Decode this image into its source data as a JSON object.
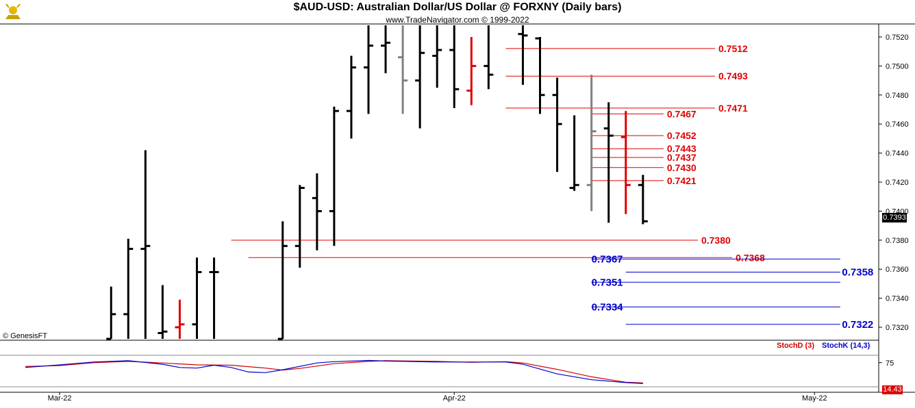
{
  "header": {
    "title": "$AUD-USD:  Australian Dollar/US Dollar @ FORXNY  (Daily bars)",
    "subtitle": "www.TradeNavigator.com © 1999-2022",
    "credit": "© GenesisFT"
  },
  "colors": {
    "bar_default": "#000000",
    "bar_red": "#e00000",
    "bar_gray": "#808080",
    "level_red": "#e00000",
    "level_blue": "#0000cc",
    "stoch_d": "#d00000",
    "stoch_k": "#0000cc"
  },
  "chart_data": [
    {
      "type": "ohlc",
      "title": "$AUD-USD:  Australian Dollar/US Dollar @ FORXNY  (Daily bars)",
      "y_ticks": [
        "0.7520",
        "0.7500",
        "0.7480",
        "0.7460",
        "0.7440",
        "0.7420",
        "0.7400",
        "0.7380",
        "0.7360",
        "0.7340",
        "0.7320"
      ],
      "ylim": [
        0.7312,
        0.7528
      ],
      "last_price": "0.7393",
      "x_labels": [
        {
          "label": "Mar-22",
          "index": 2
        },
        {
          "label": "Apr-22",
          "index": 25
        },
        {
          "label": "May-22",
          "index": 46
        }
      ],
      "bars": [
        {
          "i": 5,
          "h": 0.7348,
          "l": 0.7312,
          "o": 0.7312,
          "c": 0.7329,
          "color": "black"
        },
        {
          "i": 6,
          "h": 0.7381,
          "l": 0.7312,
          "o": 0.7329,
          "c": 0.7374,
          "color": "black"
        },
        {
          "i": 7,
          "h": 0.7442,
          "l": 0.7312,
          "o": 0.7374,
          "c": 0.7376,
          "color": "black"
        },
        {
          "i": 8,
          "h": 0.7349,
          "l": 0.7312,
          "o": 0.7316,
          "c": 0.7317,
          "color": "black"
        },
        {
          "i": 9,
          "h": 0.7339,
          "l": 0.7312,
          "o": 0.732,
          "c": 0.7322,
          "color": "red"
        },
        {
          "i": 10,
          "h": 0.7368,
          "l": 0.7312,
          "o": 0.7322,
          "c": 0.7358,
          "color": "black"
        },
        {
          "i": 11,
          "h": 0.7368,
          "l": 0.7312,
          "o": 0.7358,
          "c": 0.7358,
          "color": "black"
        },
        {
          "i": 15,
          "h": 0.7393,
          "l": 0.7312,
          "o": 0.7312,
          "c": 0.7376,
          "color": "black"
        },
        {
          "i": 16,
          "h": 0.7418,
          "l": 0.7361,
          "o": 0.7376,
          "c": 0.7416,
          "color": "black"
        },
        {
          "i": 17,
          "h": 0.7426,
          "l": 0.7373,
          "o": 0.7409,
          "c": 0.74,
          "color": "black"
        },
        {
          "i": 18,
          "h": 0.7472,
          "l": 0.7376,
          "o": 0.74,
          "c": 0.7469,
          "color": "black"
        },
        {
          "i": 19,
          "h": 0.7507,
          "l": 0.745,
          "o": 0.7469,
          "c": 0.7499,
          "color": "black"
        },
        {
          "i": 20,
          "h": 0.7528,
          "l": 0.7467,
          "o": 0.7499,
          "c": 0.7514,
          "color": "black"
        },
        {
          "i": 21,
          "h": 0.7528,
          "l": 0.7495,
          "o": 0.7514,
          "c": 0.7516,
          "color": "black"
        },
        {
          "i": 22,
          "h": 0.7528,
          "l": 0.7467,
          "o": 0.7506,
          "c": 0.749,
          "color": "gray"
        },
        {
          "i": 23,
          "h": 0.7528,
          "l": 0.7457,
          "o": 0.749,
          "c": 0.7509,
          "color": "black"
        },
        {
          "i": 24,
          "h": 0.7528,
          "l": 0.7485,
          "o": 0.7507,
          "c": 0.7511,
          "color": "black"
        },
        {
          "i": 25,
          "h": 0.7528,
          "l": 0.7471,
          "o": 0.7511,
          "c": 0.7484,
          "color": "black"
        },
        {
          "i": 26,
          "h": 0.752,
          "l": 0.7473,
          "o": 0.7483,
          "c": 0.75,
          "color": "red"
        },
        {
          "i": 27,
          "h": 0.7528,
          "l": 0.7484,
          "o": 0.75,
          "c": 0.7494,
          "color": "black"
        },
        {
          "i": 29,
          "h": 0.7528,
          "l": 0.7487,
          "o": 0.7522,
          "c": 0.7521,
          "color": "black"
        },
        {
          "i": 30,
          "h": 0.752,
          "l": 0.7467,
          "o": 0.7519,
          "c": 0.748,
          "color": "black"
        },
        {
          "i": 31,
          "h": 0.7492,
          "l": 0.7427,
          "o": 0.748,
          "c": 0.746,
          "color": "black"
        },
        {
          "i": 32,
          "h": 0.7466,
          "l": 0.7414,
          "o": 0.7416,
          "c": 0.7418,
          "color": "black"
        },
        {
          "i": 33,
          "h": 0.7494,
          "l": 0.74,
          "o": 0.7418,
          "c": 0.7455,
          "color": "gray"
        },
        {
          "i": 34,
          "h": 0.7475,
          "l": 0.7392,
          "o": 0.7457,
          "c": 0.7452,
          "color": "black"
        },
        {
          "i": 35,
          "h": 0.7469,
          "l": 0.7398,
          "o": 0.7451,
          "c": 0.7418,
          "color": "red"
        },
        {
          "i": 36,
          "h": 0.7425,
          "l": 0.7391,
          "o": 0.7418,
          "c": 0.7393,
          "color": "black"
        }
      ],
      "levels": [
        {
          "label": "0.7512",
          "value": 0.7512,
          "color": "red",
          "from": 28,
          "to": 40.2,
          "label_at": 40.4
        },
        {
          "label": "0.7493",
          "value": 0.7493,
          "color": "red",
          "from": 28,
          "to": 40.2,
          "label_at": 40.4
        },
        {
          "label": "0.7471",
          "value": 0.7471,
          "color": "red",
          "from": 28,
          "to": 40.2,
          "label_at": 40.4
        },
        {
          "label": "0.7467",
          "value": 0.7467,
          "color": "red",
          "from": 33,
          "to": 37.2,
          "label_at": 37.4
        },
        {
          "label": "0.7452",
          "value": 0.7452,
          "color": "red",
          "from": 33,
          "to": 37.2,
          "label_at": 37.4
        },
        {
          "label": "0.7443",
          "value": 0.7443,
          "color": "red",
          "from": 33,
          "to": 37.2,
          "label_at": 37.4
        },
        {
          "label": "0.7437",
          "value": 0.7437,
          "color": "red",
          "from": 33,
          "to": 37.2,
          "label_at": 37.4
        },
        {
          "label": "0.7430",
          "value": 0.743,
          "color": "red",
          "from": 33,
          "to": 37.2,
          "label_at": 37.4
        },
        {
          "label": "0.7421",
          "value": 0.7421,
          "color": "red",
          "from": 33,
          "to": 37.2,
          "label_at": 37.4
        },
        {
          "label": "0.7380",
          "value": 0.738,
          "color": "red",
          "from": 12,
          "to": 39.2,
          "label_at": 39.4
        },
        {
          "label": "0.7368",
          "value": 0.7368,
          "color": "red",
          "from": 13,
          "to": 41.2,
          "label_at": 41.4
        },
        {
          "label": "0.7367",
          "value": 0.7367,
          "color": "blue",
          "from": 33,
          "to": 47.5,
          "label_at": 33.0
        },
        {
          "label": "0.7358",
          "value": 0.7358,
          "color": "blue",
          "from": 35,
          "to": 47.5,
          "label_at": 47.6
        },
        {
          "label": "0.7351",
          "value": 0.7351,
          "color": "blue",
          "from": 33,
          "to": 47.5,
          "label_at": 33.0
        },
        {
          "label": "0.7334",
          "value": 0.7334,
          "color": "blue",
          "from": 33,
          "to": 47.5,
          "label_at": 33.0
        },
        {
          "label": "0.7322",
          "value": 0.7322,
          "color": "blue",
          "from": 35,
          "to": 47.5,
          "label_at": 47.6
        }
      ]
    },
    {
      "type": "line",
      "legend": [
        "StochD (3)",
        "StochK (14,3)"
      ],
      "y_ticks": [
        "75"
      ],
      "ylim": [
        0,
        100
      ],
      "last_value": "14.43",
      "series": [
        {
          "name": "StochD (3)",
          "color": "red",
          "points": [
            [
              0,
              63
            ],
            [
              2,
              66
            ],
            [
              4,
              75
            ],
            [
              6,
              79
            ],
            [
              8,
              74
            ],
            [
              10,
              68
            ],
            [
              12,
              67
            ],
            [
              14,
              58
            ],
            [
              15,
              52
            ],
            [
              16,
              57
            ],
            [
              18,
              72
            ],
            [
              20,
              79
            ],
            [
              21,
              81
            ],
            [
              24,
              79
            ],
            [
              26,
              76
            ],
            [
              28,
              78
            ],
            [
              29,
              74
            ],
            [
              31,
              54
            ],
            [
              33,
              31
            ],
            [
              35,
              14
            ],
            [
              36,
              12
            ]
          ]
        },
        {
          "name": "StochK (14,3)",
          "color": "blue",
          "points": [
            [
              0,
              60
            ],
            [
              2,
              68
            ],
            [
              4,
              77
            ],
            [
              6,
              81
            ],
            [
              8,
              70
            ],
            [
              9,
              60
            ],
            [
              10,
              58
            ],
            [
              11,
              67
            ],
            [
              12,
              60
            ],
            [
              13,
              46
            ],
            [
              14,
              44
            ],
            [
              15,
              53
            ],
            [
              17,
              74
            ],
            [
              18,
              78
            ],
            [
              20,
              82
            ],
            [
              21,
              80
            ],
            [
              24,
              77
            ],
            [
              26,
              77
            ],
            [
              28,
              77
            ],
            [
              29,
              70
            ],
            [
              31,
              40
            ],
            [
              33,
              22
            ],
            [
              35,
              13
            ],
            [
              36,
              10
            ]
          ]
        }
      ]
    }
  ]
}
